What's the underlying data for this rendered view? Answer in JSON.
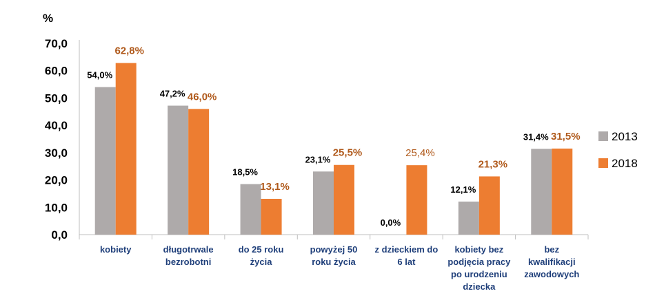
{
  "chart_data": {
    "type": "bar",
    "ylabel": "%",
    "ylim": [
      0,
      70
    ],
    "yticks": [
      "0,0",
      "10,0",
      "20,0",
      "30,0",
      "40,0",
      "50,0",
      "60,0",
      "70,0"
    ],
    "grid": false,
    "legend_position": "right",
    "categories": [
      [
        "kobiety"
      ],
      [
        "długotrwale",
        "bezrobotni"
      ],
      [
        "do 25 roku",
        "życia"
      ],
      [
        "powyżej 50",
        "roku życia"
      ],
      [
        "z dzieckiem do",
        "6 lat"
      ],
      [
        "kobiety bez",
        "podjęcia pracy",
        "po urodzeniu",
        "dziecka"
      ],
      [
        "bez",
        "kwalifikacji",
        "zawodowych"
      ]
    ],
    "series": [
      {
        "name": "2013",
        "color": "#aeaaaa",
        "values": [
          54.0,
          47.2,
          18.5,
          23.1,
          0.0,
          12.1,
          31.4
        ],
        "labels": [
          "54,0%",
          "47,2%",
          "18,5%",
          "23,1%",
          "0,0%",
          "12,1%",
          "31,4%"
        ]
      },
      {
        "name": "2018",
        "color": "#ed7d31",
        "values": [
          62.8,
          46.0,
          13.1,
          25.5,
          25.4,
          21.3,
          31.5
        ],
        "labels": [
          "62,8%",
          "46,0%",
          "13,1%",
          "25,5%",
          "25,4%",
          "21,3%",
          "31,5%"
        ]
      }
    ]
  }
}
